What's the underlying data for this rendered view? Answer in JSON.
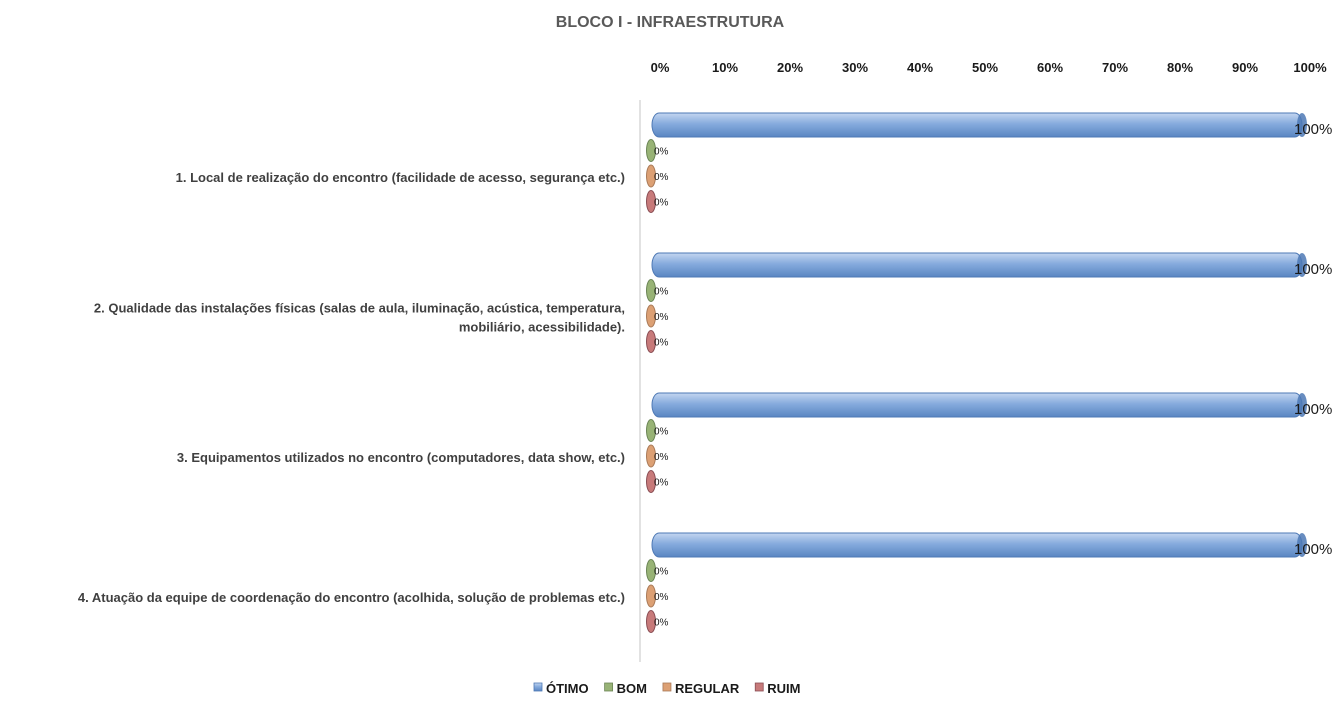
{
  "chart_data": {
    "type": "bar",
    "orientation": "horizontal",
    "title": "BLOCO I - INFRAESTRUTURA",
    "xlim": [
      0,
      1
    ],
    "x_ticks": [
      "0%",
      "10%",
      "20%",
      "30%",
      "40%",
      "50%",
      "60%",
      "70%",
      "80%",
      "90%",
      "100%"
    ],
    "x_axis_position": "top",
    "grid": false,
    "legend_position": "bottom",
    "categories": [
      [
        "1. Local de realização do encontro (facilidade de acesso, segurança etc.)"
      ],
      [
        "2. Qualidade das instalações físicas (salas de aula, iluminação, acústica, temperatura,",
        "mobiliário, acessibilidade)."
      ],
      [
        "3. Equipamentos utilizados no encontro (computadores, data show, etc.)"
      ],
      [
        "4. Atuação da equipe de coordenação do encontro (acolhida, solução de problemas etc.)"
      ]
    ],
    "series": [
      {
        "name": "ÓTIMO",
        "color": "#7aa4d8",
        "dark": "#4e79b5",
        "values": [
          1,
          1,
          1,
          1
        ],
        "labels": [
          "100%",
          "100%",
          "100%",
          "100%"
        ]
      },
      {
        "name": "BOM",
        "color": "#98b376",
        "dark": "#6b8556",
        "values": [
          0,
          0,
          0,
          0
        ],
        "labels": [
          "0%",
          "0%",
          "0%",
          "0%"
        ]
      },
      {
        "name": "REGULAR",
        "color": "#dca074",
        "dark": "#a97a58",
        "values": [
          0,
          0,
          0,
          0
        ],
        "labels": [
          "0%",
          "0%",
          "0%",
          "0%"
        ]
      },
      {
        "name": "RUIM",
        "color": "#c77a7a",
        "dark": "#8a4e55",
        "values": [
          0,
          0,
          0,
          0
        ],
        "labels": [
          "0%",
          "0%",
          "0%",
          "0%"
        ]
      }
    ]
  }
}
